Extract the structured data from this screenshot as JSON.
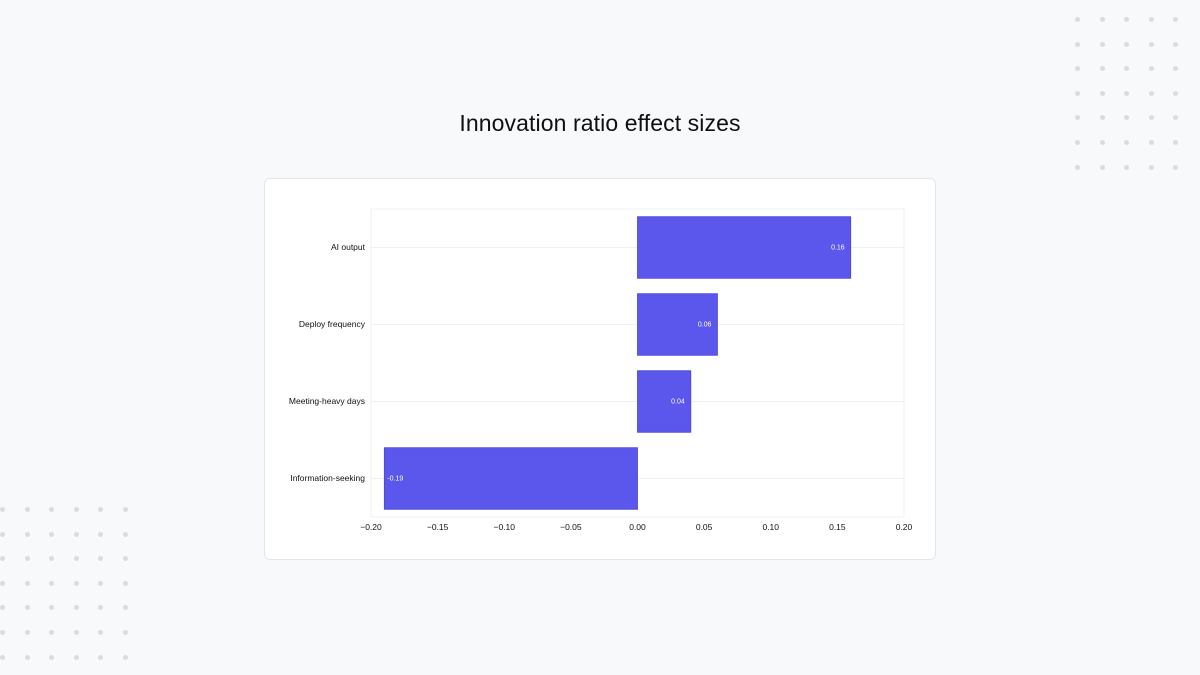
{
  "title": "Innovation ratio effect sizes",
  "colors": {
    "background": "#f8f9fb",
    "card": "#ffffff",
    "bar": "#5b57ec",
    "bar_edge": "#4a46d4",
    "grid": "#f0f1f3",
    "dots": "#dadce1"
  },
  "chart_data": {
    "type": "bar",
    "orientation": "horizontal",
    "title": "",
    "xlabel": "",
    "ylabel": "",
    "categories": [
      "AI output",
      "Deploy frequency",
      "Meeting-heavy days",
      "Information-seeking"
    ],
    "values": [
      0.16,
      0.06,
      0.04,
      -0.19
    ],
    "value_labels": [
      "0.16",
      "0.06",
      "0.04",
      "-0.19"
    ],
    "xlim": [
      -0.2,
      0.2
    ],
    "xticks": [
      -0.2,
      -0.15,
      -0.1,
      -0.05,
      0.0,
      0.05,
      0.1,
      0.15,
      0.2
    ],
    "xtick_labels": [
      "−0.20",
      "−0.15",
      "−0.10",
      "−0.05",
      "0.00",
      "0.05",
      "0.10",
      "0.15",
      "0.20"
    ],
    "grid": true,
    "legend": "none"
  }
}
